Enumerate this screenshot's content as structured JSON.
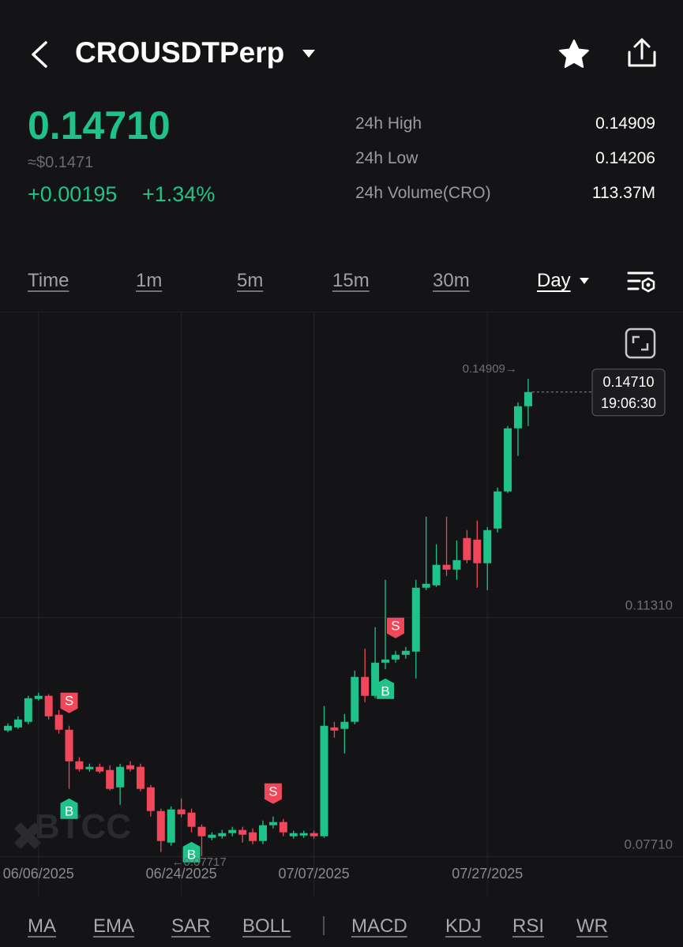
{
  "header": {
    "symbol": "CROUSDTPerp",
    "price": "0.14710",
    "usd_price": "≈$0.1471",
    "change": "+0.00195",
    "change_pct": "+1.34%",
    "stats": [
      {
        "label": "24h High",
        "value": "0.14909"
      },
      {
        "label": "24h Low",
        "value": "0.14206"
      },
      {
        "label": "24h Volume(CRO)",
        "value": "113.37M"
      }
    ]
  },
  "timeframes": [
    "Time",
    "1m",
    "5m",
    "15m",
    "30m",
    "Day"
  ],
  "indicators": [
    "MA",
    "EMA",
    "SAR",
    "BOLL",
    "MACD",
    "KDJ",
    "RSI",
    "WR"
  ],
  "watermark": "BTCC",
  "chart_data": {
    "type": "candlestick",
    "categories": [
      null,
      null,
      null,
      "06/06/2025",
      null,
      null,
      null,
      null,
      null,
      null,
      null,
      null,
      null,
      null,
      null,
      null,
      null,
      "06/24/2025",
      null,
      null,
      null,
      null,
      null,
      null,
      null,
      null,
      null,
      null,
      null,
      null,
      "07/07/2025",
      null,
      null,
      null,
      null,
      null,
      null,
      null,
      null,
      null,
      null,
      null,
      null,
      null,
      null,
      null,
      null,
      "07/27/2025",
      null,
      null,
      null,
      null
    ],
    "open": [
      0.09609,
      0.09656,
      0.0974,
      0.10084,
      0.10132,
      0.09847,
      0.09621,
      0.09145,
      0.09026,
      0.09062,
      0.09014,
      0.08753,
      0.09086,
      0.09062,
      0.08753,
      0.08396,
      0.0792,
      0.0842,
      0.08372,
      0.08158,
      0.07992,
      0.08016,
      0.08063,
      0.08111,
      0.08075,
      0.07944,
      0.08182,
      0.0823,
      0.08016,
      0.08027,
      0.08063,
      0.08016,
      0.09656,
      0.09633,
      0.0974,
      0.10417,
      0.10132,
      0.10631,
      0.10679,
      0.1075,
      0.10798,
      0.11761,
      0.11797,
      0.12106,
      0.12034,
      0.1251,
      0.12486,
      0.1213,
      0.12653,
      0.13212,
      0.14163,
      0.14496
    ],
    "high": [
      0.09716,
      0.09823,
      0.10132,
      0.1018,
      0.10156,
      0.09918,
      0.0968,
      0.09205,
      0.09109,
      0.09109,
      0.09086,
      0.09109,
      0.09145,
      0.09109,
      0.08788,
      0.08432,
      0.08467,
      0.08586,
      0.08432,
      0.08194,
      0.08075,
      0.08111,
      0.08158,
      0.08158,
      0.08134,
      0.08253,
      0.08313,
      0.08277,
      0.08099,
      0.08099,
      0.08099,
      0.09977,
      0.0974,
      0.09859,
      0.10512,
      0.10845,
      0.11166,
      0.1188,
      0.1081,
      0.10869,
      0.1188,
      0.12831,
      0.12415,
      0.12831,
      0.12474,
      0.12629,
      0.12772,
      0.12676,
      0.13271,
      0.14198,
      0.14555,
      0.14909
    ],
    "low": [
      0.09585,
      0.09633,
      0.09704,
      0.10061,
      0.09775,
      0.09561,
      0.08729,
      0.08991,
      0.08991,
      0.08967,
      0.08705,
      0.08491,
      0.08991,
      0.08693,
      0.08313,
      0.07778,
      0.07873,
      0.08301,
      0.08075,
      0.07717,
      0.07956,
      0.0798,
      0.08016,
      0.0792,
      0.07897,
      0.07897,
      0.08134,
      0.08016,
      0.0798,
      0.07992,
      0.0798,
      0.07992,
      0.09502,
      0.09264,
      0.09704,
      0.10037,
      0.10096,
      0.10536,
      0.10631,
      0.10691,
      0.10394,
      0.11725,
      0.11773,
      0.11939,
      0.1188,
      0.1213,
      0.11761,
      0.11725,
      0.12593,
      0.13188,
      0.13747,
      0.14198
    ],
    "close": [
      0.0968,
      0.09775,
      0.10096,
      0.10132,
      0.09823,
      0.09621,
      0.09145,
      0.09026,
      0.09062,
      0.08991,
      0.08729,
      0.09062,
      0.09026,
      0.08729,
      0.08396,
      0.07944,
      0.0842,
      0.08348,
      0.08158,
      0.08016,
      0.08039,
      0.08063,
      0.08111,
      0.08039,
      0.07944,
      0.08182,
      0.0823,
      0.08075,
      0.08063,
      0.08063,
      0.08016,
      0.0968,
      0.09609,
      0.0974,
      0.10417,
      0.10132,
      0.10631,
      0.10679,
      0.1075,
      0.1081,
      0.11761,
      0.1182,
      0.12106,
      0.12034,
      0.12177,
      0.12177,
      0.1213,
      0.12629,
      0.13212,
      0.14163,
      0.14496,
      0.1471
    ],
    "up_color": "#1fc38a",
    "down_color": "#f0485a",
    "ylim": [
      0.0712,
      0.1592
    ],
    "yticks": [
      {
        "value": 0.0771,
        "label": "0.07710"
      },
      {
        "value": 0.1131,
        "label": "0.11310"
      }
    ],
    "grid": true,
    "trades": [
      {
        "label": "S",
        "candle": 6,
        "color": "#f0485a"
      },
      {
        "label": "B",
        "candle": 6,
        "color": "#1fc38a"
      },
      {
        "label": "B",
        "candle": 18,
        "color": "#1fc38a"
      },
      {
        "label": "S",
        "candle": 26,
        "color": "#f0485a"
      },
      {
        "label": "B",
        "candle": 37,
        "color": "#1fc38a"
      },
      {
        "label": "S",
        "candle": 38,
        "color": "#f0485a"
      }
    ],
    "high_annotation": "0.14909→",
    "low_annotation": "←0.07717",
    "last_price_label": "0.14710",
    "last_time": "19:06:30"
  }
}
